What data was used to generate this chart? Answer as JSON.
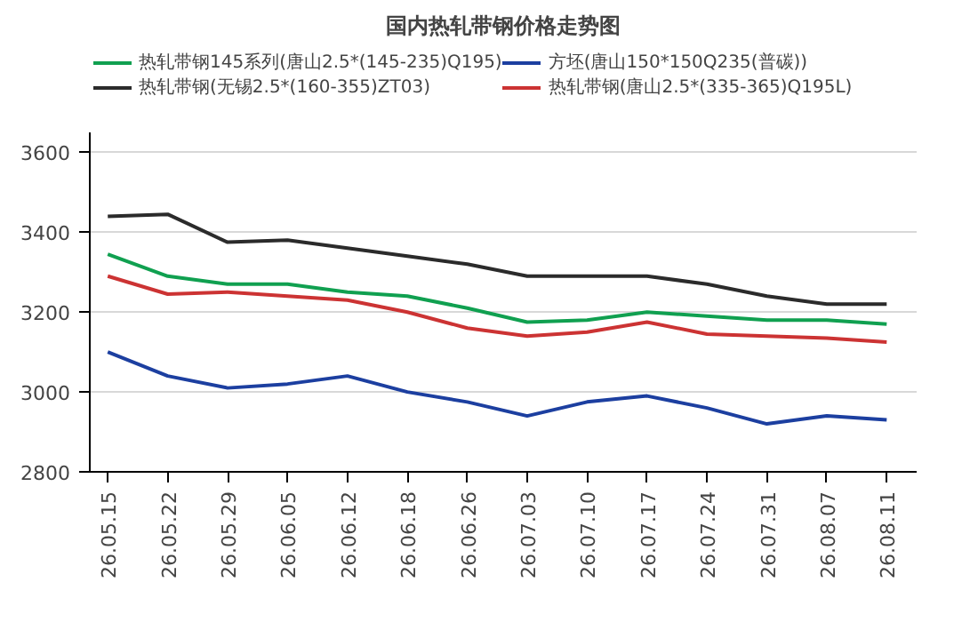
{
  "chart_data": {
    "type": "line",
    "title": "国内热轧带钢价格走势图",
    "categories": [
      "26.05.15",
      "26.05.22",
      "26.05.29",
      "26.06.05",
      "26.06.12",
      "26.06.18",
      "26.06.26",
      "26.07.03",
      "26.07.10",
      "26.07.17",
      "26.07.24",
      "26.07.31",
      "26.08.07",
      "26.08.11"
    ],
    "series": [
      {
        "name": "热轧带钢145系列(唐山2.5*(145-235)Q195)",
        "color": "#10a050",
        "values": [
          3345,
          3290,
          3270,
          3270,
          3250,
          3240,
          3210,
          3175,
          3180,
          3200,
          3190,
          3180,
          3180,
          3170
        ]
      },
      {
        "name": "方坯(唐山150*150Q235(普碳))",
        "color": "#1c3fa0",
        "values": [
          3100,
          3040,
          3010,
          3020,
          3040,
          3000,
          2975,
          2940,
          2975,
          2990,
          2960,
          2920,
          2940,
          2930
        ]
      },
      {
        "name": "热轧带钢(无锡2.5*(160-355)ZT03)",
        "color": "#2b2b2b",
        "values": [
          3440,
          3445,
          3375,
          3380,
          3360,
          3340,
          3320,
          3290,
          3290,
          3290,
          3270,
          3240,
          3220,
          3220
        ]
      },
      {
        "name": "热轧带钢(唐山2.5*(335-365)Q195L)",
        "color": "#cc3333",
        "values": [
          3290,
          3245,
          3250,
          3240,
          3230,
          3200,
          3160,
          3140,
          3150,
          3175,
          3145,
          3140,
          3135,
          3125
        ]
      }
    ],
    "ylim": [
      2800,
      3650
    ],
    "yticks": [
      2800,
      3000,
      3200,
      3400,
      3600
    ],
    "grid": "y",
    "legend": "top",
    "marker": "none",
    "line_style": "solid"
  }
}
